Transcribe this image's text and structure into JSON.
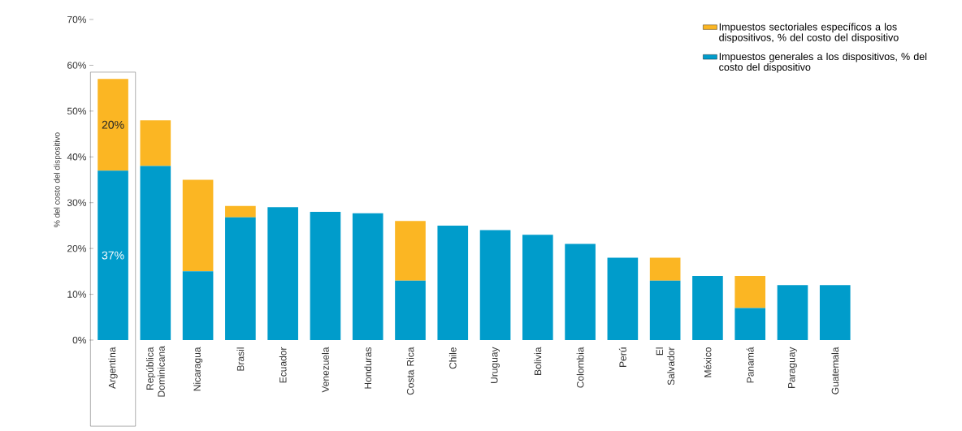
{
  "chart_data": {
    "type": "bar",
    "stacked": true,
    "ylabel": "% del costo del dispositivo",
    "categories": [
      "Argentina",
      "República Dominicana",
      "Nicaragua",
      "Brasil",
      "Ecuador",
      "Venezuela",
      "Honduras",
      "Costa Rica",
      "Chile",
      "Uruguay",
      "Bolivia",
      "Colombia",
      "Perú",
      "El Salvador",
      "México",
      "Panamá",
      "Paraguay",
      "Guatemala"
    ],
    "series": [
      {
        "name": "Impuestos generales a los dispositivos, % del costo del dispositivo",
        "color": "#009ccb",
        "values": [
          37,
          38,
          15,
          26.8,
          29,
          28,
          27.7,
          13,
          25,
          24,
          23,
          21,
          18,
          13,
          14,
          7,
          12,
          12
        ],
        "value_labels": [
          "37%",
          null,
          null,
          null,
          null,
          null,
          null,
          null,
          null,
          null,
          null,
          null,
          null,
          null,
          null,
          null,
          null,
          null
        ]
      },
      {
        "name": "Impuestos sectoriales específicos a los dispositivos, % del costo del dispositivo",
        "color": "#fbb623",
        "values": [
          20,
          10,
          20,
          2.5,
          0,
          0,
          0,
          13,
          0,
          0,
          0,
          0,
          0,
          5,
          0,
          7,
          0,
          0
        ],
        "value_labels": [
          "20%",
          null,
          null,
          null,
          null,
          null,
          null,
          null,
          null,
          null,
          null,
          null,
          null,
          null,
          null,
          null,
          null,
          null
        ]
      }
    ],
    "ylim": [
      0,
      70
    ],
    "yticks": [
      {
        "value": 0,
        "label": "0%"
      },
      {
        "value": 10,
        "label": "10%"
      },
      {
        "value": 20,
        "label": "20%"
      },
      {
        "value": 30,
        "label": "30%"
      },
      {
        "value": 40,
        "label": "40%"
      },
      {
        "value": 50,
        "label": "50%"
      },
      {
        "value": 60,
        "label": "60%"
      },
      {
        "value": 70,
        "label": "70%"
      }
    ],
    "legend": "top right",
    "grid": false
  }
}
